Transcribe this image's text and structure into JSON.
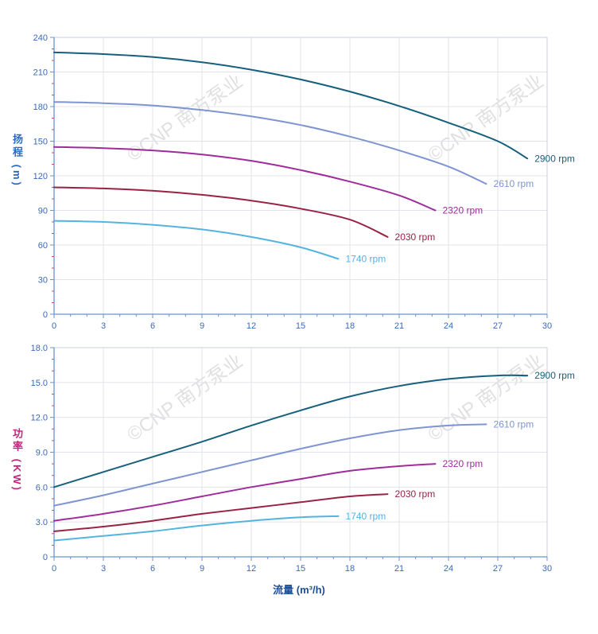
{
  "watermark": {
    "text": "©CNP 南方泵业",
    "color": "#d9d9d9"
  },
  "xlabel": "流量 (m³/h)",
  "axis": {
    "line_color": "#6a93cc",
    "grid_color": "#e0e4ea",
    "border_color": "#c8d0dc",
    "tick_label_color": "#3a6ab8",
    "minor_y_tick_color": "#c2506e",
    "minor_x_tick_color": "#6a93cc"
  },
  "chart_data": [
    {
      "type": "line",
      "name": "head-curves",
      "title": "",
      "ylabel": "扬程 (m)",
      "xlabel": "",
      "xlim": [
        0,
        30
      ],
      "ylim": [
        0,
        240
      ],
      "x_major": 3,
      "x_minor": 1,
      "y_major": 30,
      "y_minor": 10,
      "grid": true,
      "x_tick_values": [
        0,
        3,
        6,
        9,
        12,
        15,
        18,
        21,
        24,
        27,
        30
      ],
      "x_tick_labels": [
        "0",
        "3",
        "6",
        "9",
        "12",
        "15",
        "18",
        "21",
        "24",
        "27",
        "30"
      ],
      "y_tick_values": [
        0,
        30,
        60,
        90,
        120,
        150,
        180,
        210,
        240
      ],
      "y_tick_labels": [
        "0",
        "30",
        "60",
        "90",
        "120",
        "150",
        "180",
        "210",
        "240"
      ],
      "series": [
        {
          "name": "2900 rpm",
          "label": "2900 rpm",
          "color": "#17607d",
          "points": [
            [
              0,
              227
            ],
            [
              3,
              225.5
            ],
            [
              6,
              223
            ],
            [
              9,
              218.5
            ],
            [
              12,
              212
            ],
            [
              15,
              203.5
            ],
            [
              18,
              193
            ],
            [
              21,
              180.5
            ],
            [
              24,
              166
            ],
            [
              27,
              150
            ],
            [
              28.8,
              135
            ]
          ]
        },
        {
          "name": "2610 rpm",
          "label": "2610 rpm",
          "color": "#7e95d2",
          "points": [
            [
              0,
              184
            ],
            [
              3,
              183
            ],
            [
              6,
              181
            ],
            [
              9,
              177
            ],
            [
              12,
              171.5
            ],
            [
              15,
              164
            ],
            [
              18,
              154
            ],
            [
              21,
              142
            ],
            [
              24,
              128
            ],
            [
              26.3,
              113
            ]
          ]
        },
        {
          "name": "2320 rpm",
          "label": "2320 rpm",
          "color": "#a02c9c",
          "points": [
            [
              0,
              145
            ],
            [
              3,
              144
            ],
            [
              6,
              142
            ],
            [
              9,
              138.5
            ],
            [
              12,
              133
            ],
            [
              15,
              125
            ],
            [
              18,
              115
            ],
            [
              21,
              103
            ],
            [
              23.2,
              90
            ]
          ]
        },
        {
          "name": "2030 rpm",
          "label": "2030 rpm",
          "color": "#9a2345",
          "points": [
            [
              0,
              110
            ],
            [
              3,
              109
            ],
            [
              6,
              107
            ],
            [
              9,
              103.5
            ],
            [
              12,
              98.5
            ],
            [
              15,
              91.5
            ],
            [
              18,
              82
            ],
            [
              20.3,
              67
            ]
          ]
        },
        {
          "name": "1740 rpm",
          "label": "1740 rpm",
          "color": "#55b3e0",
          "points": [
            [
              0,
              81
            ],
            [
              3,
              80
            ],
            [
              6,
              77.5
            ],
            [
              9,
              73.5
            ],
            [
              12,
              67
            ],
            [
              15,
              58
            ],
            [
              17.3,
              48
            ]
          ]
        }
      ]
    },
    {
      "type": "line",
      "name": "power-curves",
      "title": "",
      "ylabel": "功率 (KW)",
      "xlabel": "流量 (m³/h)",
      "xlim": [
        0,
        30
      ],
      "ylim": [
        0,
        18
      ],
      "x_major": 3,
      "x_minor": 1,
      "y_major": 3,
      "y_minor": 1,
      "grid": true,
      "x_tick_values": [
        0,
        3,
        6,
        9,
        12,
        15,
        18,
        21,
        24,
        27,
        30
      ],
      "x_tick_labels": [
        "0",
        "3",
        "6",
        "9",
        "12",
        "15",
        "18",
        "21",
        "24",
        "27",
        "30"
      ],
      "y_tick_values": [
        0,
        3,
        6,
        9,
        12,
        15,
        18
      ],
      "y_tick_labels": [
        "0",
        "3.0",
        "6.0",
        "9.0",
        "12.0",
        "15.0",
        "18.0"
      ],
      "series": [
        {
          "name": "2900 rpm",
          "label": "2900 rpm",
          "color": "#17607d",
          "points": [
            [
              0,
              6.0
            ],
            [
              3,
              7.3
            ],
            [
              6,
              8.6
            ],
            [
              9,
              9.9
            ],
            [
              12,
              11.3
            ],
            [
              15,
              12.6
            ],
            [
              18,
              13.8
            ],
            [
              21,
              14.7
            ],
            [
              24,
              15.3
            ],
            [
              27,
              15.6
            ],
            [
              28.8,
              15.6
            ]
          ]
        },
        {
          "name": "2610 rpm",
          "label": "2610 rpm",
          "color": "#7e95d2",
          "points": [
            [
              0,
              4.4
            ],
            [
              3,
              5.3
            ],
            [
              6,
              6.3
            ],
            [
              9,
              7.3
            ],
            [
              12,
              8.3
            ],
            [
              15,
              9.3
            ],
            [
              18,
              10.2
            ],
            [
              21,
              10.9
            ],
            [
              24,
              11.3
            ],
            [
              26.3,
              11.4
            ]
          ]
        },
        {
          "name": "2320 rpm",
          "label": "2320 rpm",
          "color": "#a02c9c",
          "points": [
            [
              0,
              3.1
            ],
            [
              3,
              3.7
            ],
            [
              6,
              4.4
            ],
            [
              9,
              5.2
            ],
            [
              12,
              6.0
            ],
            [
              15,
              6.7
            ],
            [
              18,
              7.4
            ],
            [
              21,
              7.8
            ],
            [
              23.2,
              8.0
            ]
          ]
        },
        {
          "name": "2030 rpm",
          "label": "2030 rpm",
          "color": "#9a2345",
          "points": [
            [
              0,
              2.2
            ],
            [
              3,
              2.6
            ],
            [
              6,
              3.1
            ],
            [
              9,
              3.7
            ],
            [
              12,
              4.2
            ],
            [
              15,
              4.7
            ],
            [
              18,
              5.2
            ],
            [
              20.3,
              5.4
            ]
          ]
        },
        {
          "name": "1740 rpm",
          "label": "1740 rpm",
          "color": "#55b3e0",
          "points": [
            [
              0,
              1.4
            ],
            [
              3,
              1.8
            ],
            [
              6,
              2.2
            ],
            [
              9,
              2.7
            ],
            [
              12,
              3.1
            ],
            [
              15,
              3.4
            ],
            [
              17.3,
              3.5
            ]
          ]
        }
      ]
    }
  ]
}
